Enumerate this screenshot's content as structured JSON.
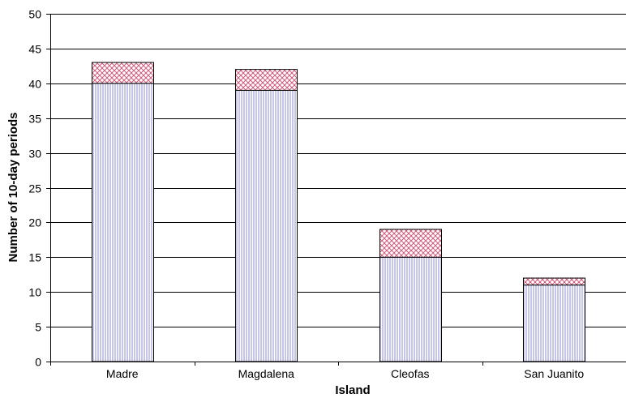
{
  "chart_data": {
    "type": "bar",
    "stacked": true,
    "title": "",
    "xlabel": "Island",
    "ylabel": "Number of 10-day periods",
    "categories": [
      "Madre",
      "Magdalena",
      "Cleofas",
      "San Juanito"
    ],
    "series": [
      {
        "values": [
          40,
          39,
          15,
          11
        ],
        "color": "#8c8cd0",
        "pattern": "vertical-lines"
      },
      {
        "values": [
          3,
          3,
          4,
          1
        ],
        "color": "#d05a7a",
        "pattern": "crosshatch"
      }
    ],
    "ylim": [
      0,
      50
    ],
    "yticks": [
      0,
      5,
      10,
      15,
      20,
      25,
      30,
      35,
      40,
      45,
      50
    ],
    "grid": true,
    "legend": "none"
  }
}
